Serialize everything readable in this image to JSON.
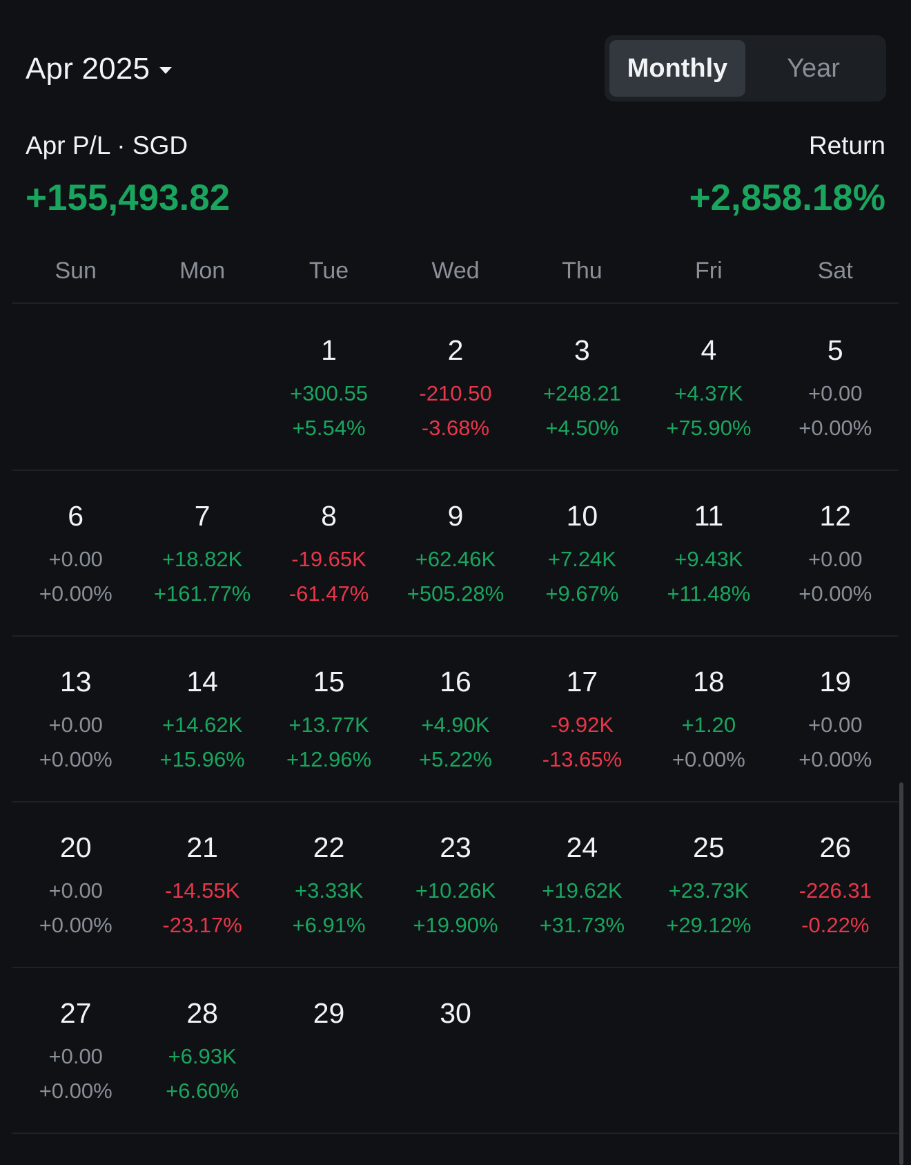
{
  "header": {
    "month_label": "Apr 2025",
    "tabs": [
      {
        "label": "Monthly",
        "active": true
      },
      {
        "label": "Year",
        "active": false
      }
    ]
  },
  "summary": {
    "pl_label": "Apr P/L · SGD",
    "pl_value": "+155,493.82",
    "return_label": "Return",
    "return_value": "+2,858.18%"
  },
  "weekdays": [
    "Sun",
    "Mon",
    "Tue",
    "Wed",
    "Thu",
    "Fri",
    "Sat"
  ],
  "colors": {
    "positive": "#1aa55f",
    "negative": "#e8364a",
    "neutral": "#8a8f98",
    "background": "#0f1114"
  },
  "weeks": [
    [
      null,
      null,
      {
        "day": "1",
        "pl": "+300.55",
        "ret": "+5.54%",
        "sign": "pos"
      },
      {
        "day": "2",
        "pl": "-210.50",
        "ret": "-3.68%",
        "sign": "neg"
      },
      {
        "day": "3",
        "pl": "+248.21",
        "ret": "+4.50%",
        "sign": "pos"
      },
      {
        "day": "4",
        "pl": "+4.37K",
        "ret": "+75.90%",
        "sign": "pos"
      },
      {
        "day": "5",
        "pl": "+0.00",
        "ret": "+0.00%",
        "sign": "zero"
      }
    ],
    [
      {
        "day": "6",
        "pl": "+0.00",
        "ret": "+0.00%",
        "sign": "zero"
      },
      {
        "day": "7",
        "pl": "+18.82K",
        "ret": "+161.77%",
        "sign": "pos"
      },
      {
        "day": "8",
        "pl": "-19.65K",
        "ret": "-61.47%",
        "sign": "neg"
      },
      {
        "day": "9",
        "pl": "+62.46K",
        "ret": "+505.28%",
        "sign": "pos"
      },
      {
        "day": "10",
        "pl": "+7.24K",
        "ret": "+9.67%",
        "sign": "pos"
      },
      {
        "day": "11",
        "pl": "+9.43K",
        "ret": "+11.48%",
        "sign": "pos"
      },
      {
        "day": "12",
        "pl": "+0.00",
        "ret": "+0.00%",
        "sign": "zero"
      }
    ],
    [
      {
        "day": "13",
        "pl": "+0.00",
        "ret": "+0.00%",
        "sign": "zero"
      },
      {
        "day": "14",
        "pl": "+14.62K",
        "ret": "+15.96%",
        "sign": "pos"
      },
      {
        "day": "15",
        "pl": "+13.77K",
        "ret": "+12.96%",
        "sign": "pos"
      },
      {
        "day": "16",
        "pl": "+4.90K",
        "ret": "+5.22%",
        "sign": "pos"
      },
      {
        "day": "17",
        "pl": "-9.92K",
        "ret": "-13.65%",
        "sign": "neg"
      },
      {
        "day": "18",
        "pl": "+1.20",
        "ret": "+0.00%",
        "sign": "pos",
        "ret_sign": "zero"
      },
      {
        "day": "19",
        "pl": "+0.00",
        "ret": "+0.00%",
        "sign": "zero"
      }
    ],
    [
      {
        "day": "20",
        "pl": "+0.00",
        "ret": "+0.00%",
        "sign": "zero"
      },
      {
        "day": "21",
        "pl": "-14.55K",
        "ret": "-23.17%",
        "sign": "neg"
      },
      {
        "day": "22",
        "pl": "+3.33K",
        "ret": "+6.91%",
        "sign": "pos"
      },
      {
        "day": "23",
        "pl": "+10.26K",
        "ret": "+19.90%",
        "sign": "pos"
      },
      {
        "day": "24",
        "pl": "+19.62K",
        "ret": "+31.73%",
        "sign": "pos"
      },
      {
        "day": "25",
        "pl": "+23.73K",
        "ret": "+29.12%",
        "sign": "pos"
      },
      {
        "day": "26",
        "pl": "-226.31",
        "ret": "-0.22%",
        "sign": "neg"
      }
    ],
    [
      {
        "day": "27",
        "pl": "+0.00",
        "ret": "+0.00%",
        "sign": "zero"
      },
      {
        "day": "28",
        "pl": "+6.93K",
        "ret": "+6.60%",
        "sign": "pos"
      },
      {
        "day": "29",
        "pl": "",
        "ret": "",
        "sign": "zero"
      },
      {
        "day": "30",
        "pl": "",
        "ret": "",
        "sign": "zero"
      },
      null,
      null,
      null
    ]
  ]
}
